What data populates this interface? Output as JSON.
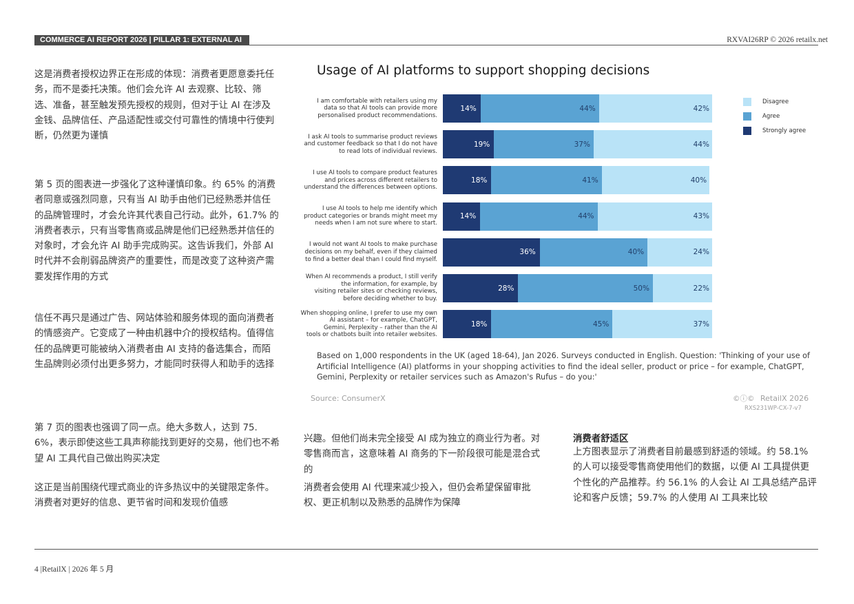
{
  "header": {
    "tag": "COMMERCE AI REPORT 2026 | PILLAR 1: EXTERNAL AI",
    "right": "RXVAI26RP © 2026 retailx.net"
  },
  "left_column": {
    "p1": "这是消费者授权边界正在形成的体现：消费者更愿意委托任务，而不是委托决策。他们会允许 AI 去观察、比较、筛选、准备，甚至触发预先授权的规则，但对于让 AI 在涉及金钱、品牌信任、产品适配性或交付可靠性的情境中行使判断，仍然更为谨慎",
    "p2": "第 5 页的图表进一步强化了这种谨慎印象。约 65% 的消费者同意或强烈同意，只有当 AI 助手由他们已经熟悉并信任的品牌管理时，才会允许其代表自己行动。此外，61.7% 的消费者表示，只有当零售商或品牌是他们已经熟悉并信任的对象时，才会允许 AI 助手完成购买。这告诉我们，外部 AI 时代并不会削弱品牌资产的重要性，而是改变了这种资产需要发挥作用的方式",
    "p3": "信任不再只是通过广告、网站体验和服务体现的面向消费者的情感资产。它变成了一种由机器中介的授权结构。值得信任的品牌更可能被纳入消费者由 AI 支持的备选集合，而陌生品牌则必须付出更多努力，才能同时获得人和助手的选择",
    "p4": "第 7 页的图表也强调了同一点。绝大多数人，达到 75.6%，表示即使这些工具声称能找到更好的交易，他们也不希望 AI 工具代自己做出购买决定",
    "p5": "这正是当前围绕代理式商业的许多热议中的关键限定条件。消费者对更好的信息、更节省时间和发现价值感"
  },
  "middle_column": {
    "p1": "兴趣。但他们尚未完全接受 AI 成为独立的商业行为者。对零售商而言，这意味着 AI 商务的下一阶段很可能是混合式的",
    "p2": "消费者会使用 AI 代理来减少投入，但仍会希望保留审批权、更正机制以及熟悉的品牌作为保障"
  },
  "right_column": {
    "heading": "消费者舒适区",
    "p1": "上方图表显示了消费者目前最感到舒适的领域。约 58.1% 的人可以接受零售商使用他们的数据，以便 AI 工具提供更个性化的产品推荐。约 56.1% 的人会让 AI 工具总结产品评论和客户反馈；59.7% 的人使用 AI 工具来比较"
  },
  "chart_data": {
    "type": "bar",
    "orientation": "horizontal",
    "stacked": true,
    "title": "Usage of AI platforms to support shopping decisions",
    "categories": [
      "I am comfortable with retailers using my data so that AI tools can provide more personalised product recommendations.",
      "I ask AI tools to summarise product reviews and customer feedback so that I do not have to read lots of individual reviews.",
      "I use AI tools to compare product features and prices across different retailers to understand the differences between options.",
      "I use AI tools to help me identify which product categories or brands might meet my needs when I am not sure where to start.",
      "I would not want AI tools to make purchase decisions on my behalf, even if they claimed to find a better deal than I could find myself.",
      "When AI recommends a product, I still verify the information, for example, by visiting retailer sites or checking reviews, before deciding whether to buy.",
      "When shopping online, I prefer to use my own AI assistant – for example, ChatGPT, Gemini, Perplexity – rather than the AI tools or chatbots built into retailer websites."
    ],
    "category_lines": [
      [
        "I am comfortable with retailers using my",
        "data so that AI tools can provide more",
        "personalised product recommendations."
      ],
      [
        "I ask AI tools to summarise product reviews",
        "and customer feedback so that I do not have",
        "to read lots of individual reviews."
      ],
      [
        "I use AI tools to compare product features",
        "and prices across different retailers to",
        "understand the differences between options."
      ],
      [
        "I use AI tools to help me identify which",
        "product categories or brands might meet my",
        "needs when I am not sure where to start."
      ],
      [
        "I would not want AI tools to make purchase",
        "decisions on my behalf, even if they claimed",
        "to find a better deal than I could find myself."
      ],
      [
        "When AI recommends a product, I still verify",
        "the  information, for example, by",
        "visiting retailer sites or checking reviews,",
        "before deciding whether to buy."
      ],
      [
        "When shopping online, I prefer to use my own",
        "AI assistant – for example, ChatGPT,",
        "Gemini, Perplexity – rather than the AI",
        "tools or chatbots built into retailer websites."
      ]
    ],
    "series": [
      {
        "name": "Strongly agree",
        "color": "#1f3a73",
        "values": [
          14,
          19,
          18,
          14,
          36,
          28,
          18
        ]
      },
      {
        "name": "Agree",
        "color": "#5aa3d3",
        "values": [
          44,
          37,
          41,
          44,
          40,
          50,
          45
        ]
      },
      {
        "name": "Disagree",
        "color": "#b9e3f7",
        "values": [
          42,
          44,
          40,
          43,
          24,
          22,
          37
        ]
      }
    ],
    "value_suffix": "%",
    "legend_order": [
      "Disagree",
      "Agree",
      "Strongly agree"
    ],
    "legend_position": "top-right",
    "xlim": [
      0,
      100
    ],
    "grid": false,
    "note": "Based on 1,000 respondents in the UK (aged 18-64), Jan 2026. Surveys conducted in English. Question: 'Thinking of your use of Artificial Intelligence (AI) platforms in your shopping activities to find the ideal seller, product or price – for example, ChatGPT, Gemini, Perplexity or retailer services such as Amazon's Rufus – do you:'",
    "source": "Source: ConsumerX",
    "cc_mark": "©ⓘ©",
    "brand": "RetailX 2026",
    "code": "RXS231WP-CX-7-v7"
  },
  "footer": {
    "text": "4 |RetailX | 2026 年 5 月"
  }
}
